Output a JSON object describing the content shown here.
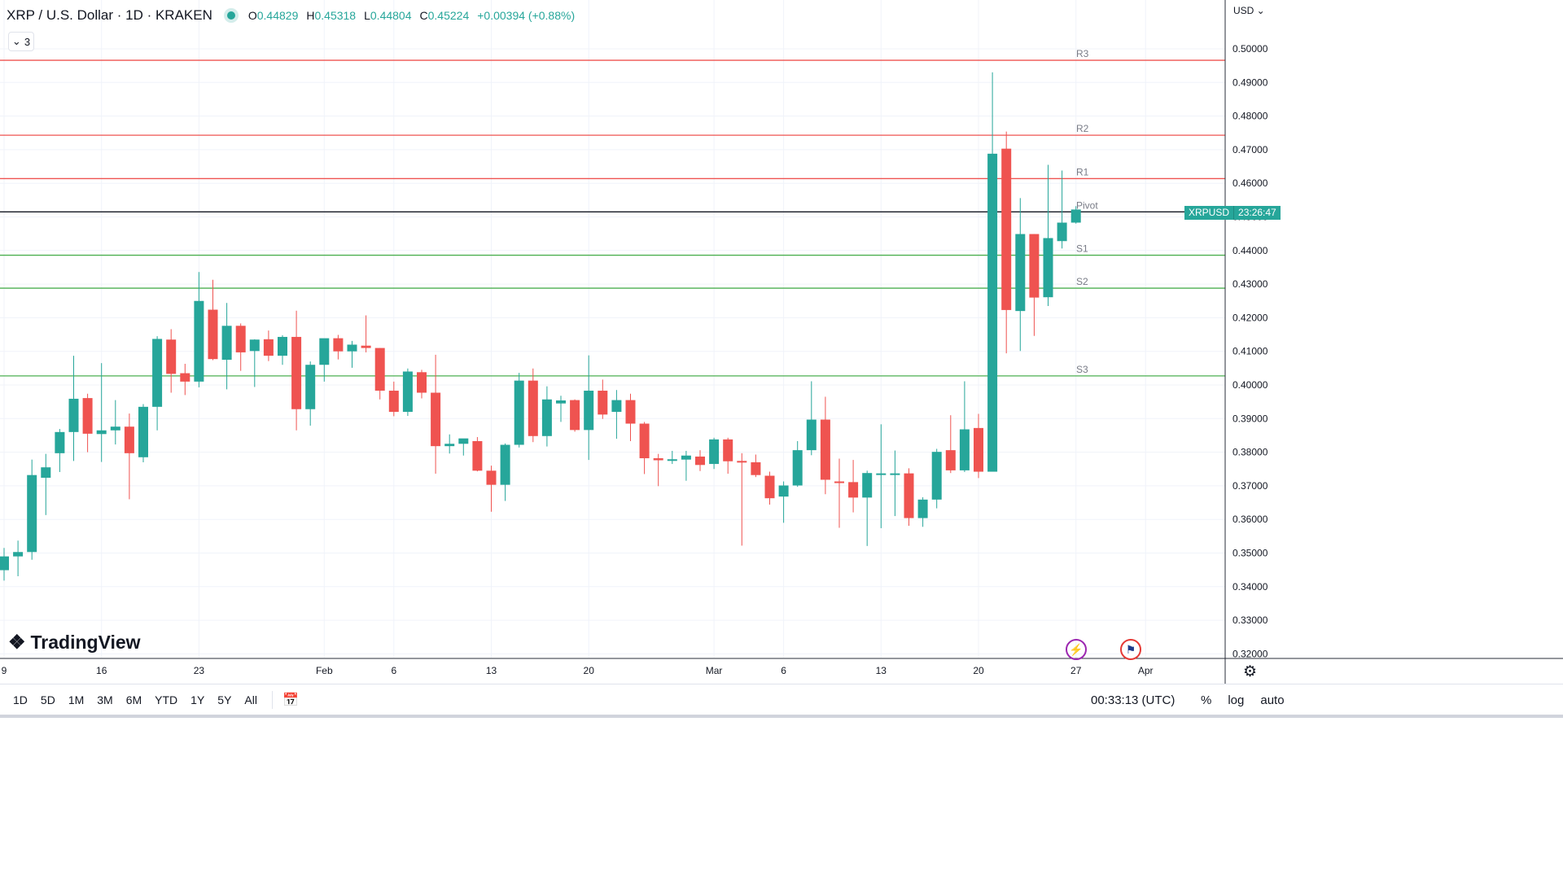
{
  "header": {
    "title": "XRP / U.S. Dollar · 1D · KRAKEN",
    "open_label": "O",
    "open": "0.44829",
    "high_label": "H",
    "high": "0.45318",
    "low_label": "L",
    "low": "0.44804",
    "close_label": "C",
    "close": "0.45224",
    "change": "+0.00394 (+0.88%)",
    "indicator_count": "3",
    "currency": "USD"
  },
  "price_tag": {
    "symbol": "XRPUSD",
    "countdown": "23:26:47"
  },
  "logo": {
    "text": "TradingView"
  },
  "bottom_bar": {
    "ranges": [
      "1D",
      "5D",
      "1M",
      "3M",
      "6M",
      "YTD",
      "1Y",
      "5Y",
      "All"
    ],
    "clock": "00:33:13 (UTC)",
    "percent": "%",
    "log": "log",
    "auto": "auto"
  },
  "colors": {
    "up": "#26a69a",
    "down": "#ef5350",
    "pivot": "#131722",
    "resistance": "#ef5350",
    "support": "#4caf50",
    "grid": "#f0f3fa"
  },
  "icons": [
    "chevron-down-icon",
    "lightning-icon",
    "us-flag-icon",
    "gear-icon",
    "calendar-range-icon"
  ],
  "chart_data": {
    "type": "candlestick",
    "symbol": "XRPUSD",
    "ylim": [
      0.32,
      0.505
    ],
    "y_ticks": [
      "0.50000",
      "0.49000",
      "0.48000",
      "0.47000",
      "0.46000",
      "0.45000",
      "0.44000",
      "0.43000",
      "0.42000",
      "0.41000",
      "0.40000",
      "0.39000",
      "0.38000",
      "0.37000",
      "0.36000",
      "0.35000",
      "0.34000",
      "0.33000",
      "0.32000"
    ],
    "x_ticks": [
      {
        "label": "9",
        "index": 0
      },
      {
        "label": "16",
        "index": 7
      },
      {
        "label": "23",
        "index": 14
      },
      {
        "label": "Feb",
        "index": 23
      },
      {
        "label": "6",
        "index": 28
      },
      {
        "label": "13",
        "index": 35
      },
      {
        "label": "20",
        "index": 42
      },
      {
        "label": "Mar",
        "index": 51
      },
      {
        "label": "6",
        "index": 56
      },
      {
        "label": "13",
        "index": 63
      },
      {
        "label": "20",
        "index": 70
      },
      {
        "label": "27",
        "index": 77
      },
      {
        "label": "Apr",
        "index": 82
      }
    ],
    "levels": [
      {
        "name": "R3",
        "value": 0.4966,
        "kind": "resistance"
      },
      {
        "name": "R2",
        "value": 0.4743,
        "kind": "resistance"
      },
      {
        "name": "R1",
        "value": 0.4614,
        "kind": "resistance"
      },
      {
        "name": "Pivot",
        "value": 0.4515,
        "kind": "pivot"
      },
      {
        "name": "S1",
        "value": 0.4386,
        "kind": "support"
      },
      {
        "name": "S2",
        "value": 0.4288,
        "kind": "support"
      },
      {
        "name": "S3",
        "value": 0.4027,
        "kind": "support"
      }
    ],
    "candles": [
      [
        0.3449,
        0.3515,
        0.3418,
        0.349
      ],
      [
        0.349,
        0.3537,
        0.3431,
        0.3503
      ],
      [
        0.3503,
        0.3778,
        0.348,
        0.3732
      ],
      [
        0.3724,
        0.3795,
        0.3613,
        0.3755
      ],
      [
        0.3797,
        0.3869,
        0.3741,
        0.386
      ],
      [
        0.386,
        0.4087,
        0.3774,
        0.3959
      ],
      [
        0.3961,
        0.3974,
        0.38,
        0.3855
      ],
      [
        0.3854,
        0.4065,
        0.3771,
        0.3865
      ],
      [
        0.3865,
        0.3955,
        0.3823,
        0.3876
      ],
      [
        0.3876,
        0.3915,
        0.366,
        0.3797
      ],
      [
        0.3785,
        0.3943,
        0.377,
        0.3935
      ],
      [
        0.3935,
        0.4145,
        0.3865,
        0.4137
      ],
      [
        0.4135,
        0.4166,
        0.3977,
        0.4033
      ],
      [
        0.4035,
        0.4063,
        0.397,
        0.401
      ],
      [
        0.401,
        0.4336,
        0.3993,
        0.425
      ],
      [
        0.4224,
        0.4313,
        0.4074,
        0.4077
      ],
      [
        0.4075,
        0.4244,
        0.3987,
        0.4176
      ],
      [
        0.4176,
        0.4183,
        0.4042,
        0.4097
      ],
      [
        0.4101,
        0.4136,
        0.3994,
        0.4135
      ],
      [
        0.4136,
        0.4162,
        0.4071,
        0.4087
      ],
      [
        0.4087,
        0.4148,
        0.406,
        0.4143
      ],
      [
        0.4143,
        0.4221,
        0.3865,
        0.3928
      ],
      [
        0.3928,
        0.407,
        0.3879,
        0.406
      ],
      [
        0.406,
        0.4138,
        0.401,
        0.4139
      ],
      [
        0.4139,
        0.4149,
        0.4076,
        0.41
      ],
      [
        0.41,
        0.4131,
        0.4051,
        0.412
      ],
      [
        0.4117,
        0.4207,
        0.4097,
        0.411
      ],
      [
        0.411,
        0.411,
        0.3957,
        0.3983
      ],
      [
        0.3983,
        0.401,
        0.3907,
        0.392
      ],
      [
        0.392,
        0.4049,
        0.3908,
        0.404
      ],
      [
        0.4038,
        0.4045,
        0.396,
        0.3977
      ],
      [
        0.3977,
        0.409,
        0.3736,
        0.3818
      ],
      [
        0.3818,
        0.3853,
        0.3796,
        0.3825
      ],
      [
        0.3825,
        0.3839,
        0.379,
        0.3841
      ],
      [
        0.3833,
        0.3845,
        0.3743,
        0.3745
      ],
      [
        0.3745,
        0.376,
        0.3623,
        0.3703
      ],
      [
        0.3703,
        0.3826,
        0.3655,
        0.3822
      ],
      [
        0.3822,
        0.4036,
        0.3814,
        0.4013
      ],
      [
        0.4013,
        0.4049,
        0.383,
        0.3848
      ],
      [
        0.3848,
        0.3996,
        0.3817,
        0.3957
      ],
      [
        0.3945,
        0.3968,
        0.389,
        0.3954
      ],
      [
        0.3955,
        0.3957,
        0.3861,
        0.3866
      ],
      [
        0.3866,
        0.4088,
        0.3777,
        0.3983
      ],
      [
        0.3983,
        0.4016,
        0.3899,
        0.3912
      ],
      [
        0.392,
        0.3985,
        0.384,
        0.3955
      ],
      [
        0.3955,
        0.3974,
        0.3833,
        0.3885
      ],
      [
        0.3885,
        0.389,
        0.3735,
        0.3782
      ],
      [
        0.3782,
        0.3795,
        0.3699,
        0.3776
      ],
      [
        0.3776,
        0.3804,
        0.3765,
        0.3779
      ],
      [
        0.3778,
        0.3804,
        0.3715,
        0.379
      ],
      [
        0.3787,
        0.3806,
        0.3744,
        0.3762
      ],
      [
        0.3765,
        0.3843,
        0.375,
        0.3838
      ],
      [
        0.3838,
        0.3843,
        0.3736,
        0.3773
      ],
      [
        0.3774,
        0.3797,
        0.3522,
        0.377
      ],
      [
        0.377,
        0.3793,
        0.3726,
        0.3732
      ],
      [
        0.373,
        0.3742,
        0.3644,
        0.3663
      ],
      [
        0.3668,
        0.3713,
        0.359,
        0.3701
      ],
      [
        0.3701,
        0.3833,
        0.3697,
        0.3806
      ],
      [
        0.3806,
        0.4011,
        0.3791,
        0.3897
      ],
      [
        0.3897,
        0.3965,
        0.3675,
        0.3718
      ],
      [
        0.3713,
        0.3781,
        0.3575,
        0.3711
      ],
      [
        0.3711,
        0.3777,
        0.3621,
        0.3665
      ],
      [
        0.3665,
        0.3745,
        0.3521,
        0.3738
      ],
      [
        0.3737,
        0.3883,
        0.3574,
        0.3737
      ],
      [
        0.3737,
        0.3805,
        0.361,
        0.3737
      ],
      [
        0.3737,
        0.3752,
        0.3581,
        0.3604
      ],
      [
        0.3604,
        0.3666,
        0.3578,
        0.3659
      ],
      [
        0.3659,
        0.381,
        0.3633,
        0.3801
      ],
      [
        0.3806,
        0.391,
        0.3738,
        0.3746
      ],
      [
        0.3746,
        0.4011,
        0.3741,
        0.3868
      ],
      [
        0.3872,
        0.3914,
        0.3723,
        0.3742
      ],
      [
        0.3742,
        0.493,
        0.3742,
        0.4688
      ],
      [
        0.4703,
        0.4754,
        0.4094,
        0.4223
      ],
      [
        0.422,
        0.4556,
        0.4101,
        0.4449
      ],
      [
        0.4449,
        0.4449,
        0.4146,
        0.426
      ],
      [
        0.4261,
        0.4655,
        0.4235,
        0.4437
      ],
      [
        0.4428,
        0.4638,
        0.4406,
        0.4483
      ],
      [
        0.4483,
        0.4532,
        0.448,
        0.4522
      ]
    ]
  }
}
